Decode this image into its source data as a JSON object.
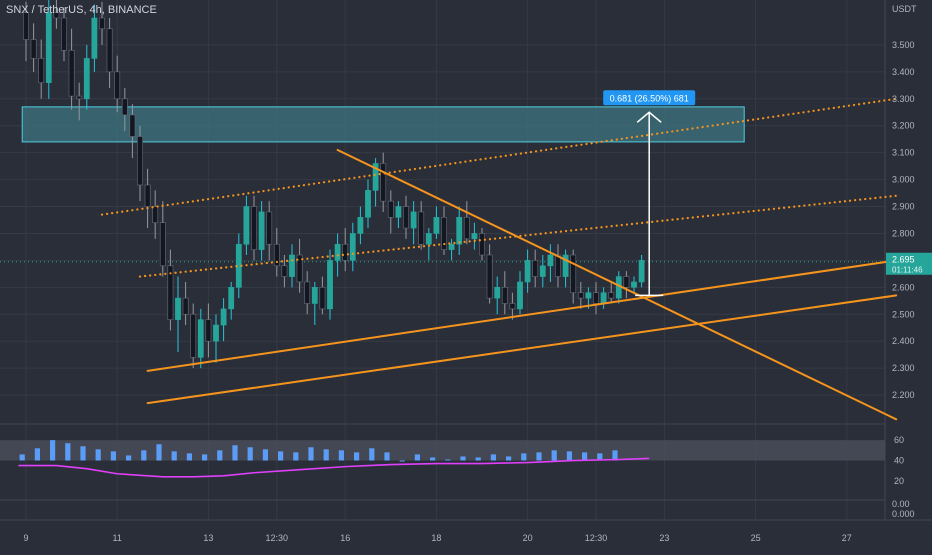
{
  "header": {
    "symbol": "SNX / TetherUS, 4h, BINANCE",
    "currency": "USDT"
  },
  "colors": {
    "background": "#2a2e39",
    "bull": "#26a69a",
    "bear": "#131722",
    "up_wick": "#26c6da",
    "trend": "#f5941d",
    "zone_fill": "#3d7480",
    "zone_border": "#4dd0e1",
    "measure": "#ffffff",
    "rsi_line": "#e040fb",
    "rsi_band": "#4b4f5b",
    "hist_pos": "#5b9cf6",
    "hist_neg": "#e91e63",
    "label_bg": "#2196f3",
    "axis_text": "#b2b5be"
  },
  "chart_data": {
    "type": "candlestick",
    "symbol": "SNX / TetherUS",
    "interval": "4h",
    "exchange": "BINANCE",
    "ylim": [
      2.1,
      3.6
    ],
    "y_ticks": [
      "3.500",
      "3.400",
      "3.300",
      "3.200",
      "3.100",
      "3.000",
      "2.900",
      "2.800",
      "2.700",
      "2.600",
      "2.500",
      "2.400",
      "2.300",
      "2.200"
    ],
    "x_ticks": [
      {
        "label": "9",
        "i": 0
      },
      {
        "label": "11",
        "i": 12
      },
      {
        "label": "13",
        "i": 24
      },
      {
        "label": "12:30",
        "i": 33
      },
      {
        "label": "16",
        "i": 42
      },
      {
        "label": "18",
        "i": 54
      },
      {
        "label": "20",
        "i": 66
      },
      {
        "label": "12:30",
        "i": 75
      },
      {
        "label": "23",
        "i": 84
      },
      {
        "label": "25",
        "i": 96
      },
      {
        "label": "27",
        "i": 108
      }
    ],
    "last_price": {
      "value": "2.695",
      "countdown": "01:11:46",
      "y": 2.695
    },
    "candles": [
      [
        3.62,
        3.66,
        3.44,
        3.52
      ],
      [
        3.52,
        3.58,
        3.4,
        3.45
      ],
      [
        3.45,
        3.52,
        3.3,
        3.36
      ],
      [
        3.36,
        3.7,
        3.3,
        3.62
      ],
      [
        3.62,
        3.72,
        3.56,
        3.6
      ],
      [
        3.6,
        3.64,
        3.44,
        3.48
      ],
      [
        3.48,
        3.56,
        3.26,
        3.31
      ],
      [
        3.31,
        3.36,
        3.22,
        3.3
      ],
      [
        3.3,
        3.5,
        3.26,
        3.45
      ],
      [
        3.45,
        3.65,
        3.4,
        3.6
      ],
      [
        3.6,
        3.66,
        3.5,
        3.56
      ],
      [
        3.56,
        3.6,
        3.34,
        3.4
      ],
      [
        3.4,
        3.46,
        3.25,
        3.3
      ],
      [
        3.3,
        3.34,
        3.18,
        3.24
      ],
      [
        3.24,
        3.28,
        3.08,
        3.16
      ],
      [
        3.16,
        3.2,
        2.92,
        2.98
      ],
      [
        2.98,
        3.04,
        2.82,
        2.9
      ],
      [
        2.9,
        2.96,
        2.78,
        2.84
      ],
      [
        2.84,
        2.92,
        2.64,
        2.68
      ],
      [
        2.68,
        2.74,
        2.44,
        2.48
      ],
      [
        2.48,
        2.64,
        2.36,
        2.56
      ],
      [
        2.56,
        2.62,
        2.46,
        2.5
      ],
      [
        2.5,
        2.54,
        2.3,
        2.34
      ],
      [
        2.34,
        2.52,
        2.3,
        2.48
      ],
      [
        2.48,
        2.54,
        2.34,
        2.4
      ],
      [
        2.4,
        2.5,
        2.32,
        2.46
      ],
      [
        2.46,
        2.56,
        2.4,
        2.52
      ],
      [
        2.52,
        2.62,
        2.48,
        2.6
      ],
      [
        2.6,
        2.8,
        2.56,
        2.76
      ],
      [
        2.76,
        2.94,
        2.72,
        2.9
      ],
      [
        2.9,
        2.94,
        2.7,
        2.74
      ],
      [
        2.74,
        2.92,
        2.7,
        2.88
      ],
      [
        2.88,
        2.92,
        2.7,
        2.76
      ],
      [
        2.76,
        2.82,
        2.64,
        2.68
      ],
      [
        2.68,
        2.72,
        2.6,
        2.64
      ],
      [
        2.64,
        2.76,
        2.6,
        2.72
      ],
      [
        2.72,
        2.78,
        2.58,
        2.62
      ],
      [
        2.62,
        2.66,
        2.5,
        2.54
      ],
      [
        2.54,
        2.62,
        2.46,
        2.6
      ],
      [
        2.6,
        2.64,
        2.5,
        2.52
      ],
      [
        2.52,
        2.74,
        2.48,
        2.7
      ],
      [
        2.7,
        2.8,
        2.64,
        2.76
      ],
      [
        2.76,
        2.82,
        2.66,
        2.7
      ],
      [
        2.7,
        2.84,
        2.66,
        2.8
      ],
      [
        2.8,
        2.9,
        2.76,
        2.86
      ],
      [
        2.86,
        3.0,
        2.82,
        2.96
      ],
      [
        2.96,
        3.08,
        2.9,
        3.06
      ],
      [
        3.06,
        3.1,
        2.88,
        2.92
      ],
      [
        2.92,
        2.96,
        2.8,
        2.86
      ],
      [
        2.86,
        2.92,
        2.82,
        2.9
      ],
      [
        2.9,
        2.94,
        2.78,
        2.82
      ],
      [
        2.82,
        2.92,
        2.76,
        2.88
      ],
      [
        2.88,
        2.92,
        2.74,
        2.76
      ],
      [
        2.76,
        2.82,
        2.7,
        2.8
      ],
      [
        2.8,
        2.9,
        2.78,
        2.86
      ],
      [
        2.86,
        2.9,
        2.72,
        2.74
      ],
      [
        2.74,
        2.78,
        2.7,
        2.76
      ],
      [
        2.76,
        2.9,
        2.72,
        2.86
      ],
      [
        2.86,
        2.92,
        2.76,
        2.78
      ],
      [
        2.78,
        2.84,
        2.74,
        2.8
      ],
      [
        2.8,
        2.82,
        2.7,
        2.72
      ],
      [
        2.72,
        2.76,
        2.54,
        2.56
      ],
      [
        2.56,
        2.64,
        2.5,
        2.6
      ],
      [
        2.6,
        2.66,
        2.5,
        2.54
      ],
      [
        2.54,
        2.58,
        2.48,
        2.52
      ],
      [
        2.52,
        2.66,
        2.5,
        2.62
      ],
      [
        2.62,
        2.74,
        2.58,
        2.7
      ],
      [
        2.7,
        2.74,
        2.6,
        2.64
      ],
      [
        2.64,
        2.72,
        2.6,
        2.68
      ],
      [
        2.68,
        2.76,
        2.62,
        2.72
      ],
      [
        2.72,
        2.76,
        2.6,
        2.64
      ],
      [
        2.64,
        2.74,
        2.6,
        2.72
      ],
      [
        2.72,
        2.74,
        2.54,
        2.58
      ],
      [
        2.58,
        2.62,
        2.52,
        2.56
      ],
      [
        2.56,
        2.6,
        2.52,
        2.58
      ],
      [
        2.58,
        2.62,
        2.5,
        2.54
      ],
      [
        2.54,
        2.6,
        2.52,
        2.58
      ],
      [
        2.58,
        2.62,
        2.54,
        2.56
      ],
      [
        2.56,
        2.66,
        2.54,
        2.64
      ],
      [
        2.64,
        2.66,
        2.56,
        2.6
      ],
      [
        2.6,
        2.64,
        2.58,
        2.62
      ],
      [
        2.62,
        2.72,
        2.6,
        2.7
      ]
    ],
    "zone": {
      "i0": -0.5,
      "i1": 94.5,
      "y_top": 3.27,
      "y_bottom": 3.14
    },
    "lines": [
      {
        "name": "support-lower",
        "style": "solid",
        "i0": 16,
        "y0": 2.17,
        "i1": 114.5,
        "y1": 2.57
      },
      {
        "name": "support-upper",
        "style": "solid",
        "i0": 16,
        "y0": 2.29,
        "i1": 114.5,
        "y1": 2.7
      },
      {
        "name": "triangle-resistance",
        "style": "solid",
        "i0": 41,
        "y0": 3.11,
        "i1": 114.5,
        "y1": 2.11
      },
      {
        "name": "channel-top",
        "style": "dotted",
        "i0": 10,
        "y0": 2.87,
        "i1": 114.5,
        "y1": 3.3
      },
      {
        "name": "channel-mid",
        "style": "dotted",
        "i0": 15,
        "y0": 2.64,
        "i1": 114.5,
        "y1": 2.94
      }
    ],
    "measure": {
      "label": "0.681 (26.50%) 681",
      "i": 82,
      "y_from": 2.57,
      "y_to": 3.25
    },
    "rsi": {
      "ylim": [
        14,
        68
      ],
      "band": [
        40,
        60
      ],
      "ticks": [
        "60",
        "40",
        "20"
      ],
      "hist_ticks": [
        "0.00",
        "0.000"
      ],
      "line": [
        {
          "i": -1,
          "v": 35
        },
        {
          "i": 4,
          "v": 35
        },
        {
          "i": 8,
          "v": 32
        },
        {
          "i": 12,
          "v": 27
        },
        {
          "i": 18,
          "v": 24
        },
        {
          "i": 22,
          "v": 24
        },
        {
          "i": 26,
          "v": 25
        },
        {
          "i": 30,
          "v": 28
        },
        {
          "i": 36,
          "v": 31
        },
        {
          "i": 42,
          "v": 34
        },
        {
          "i": 48,
          "v": 36
        },
        {
          "i": 54,
          "v": 37
        },
        {
          "i": 60,
          "v": 37
        },
        {
          "i": 66,
          "v": 38
        },
        {
          "i": 72,
          "v": 40
        },
        {
          "i": 78,
          "v": 41
        },
        {
          "i": 82,
          "v": 42
        }
      ],
      "bars": [
        46,
        52,
        60,
        57,
        54,
        51,
        49,
        45,
        50,
        56,
        49,
        47,
        46,
        50,
        55,
        53,
        51,
        49,
        48,
        53,
        51,
        50,
        48,
        52,
        48,
        40,
        46,
        43,
        41,
        44,
        43,
        46,
        44,
        47,
        48,
        50,
        49,
        48,
        47,
        50
      ]
    }
  }
}
